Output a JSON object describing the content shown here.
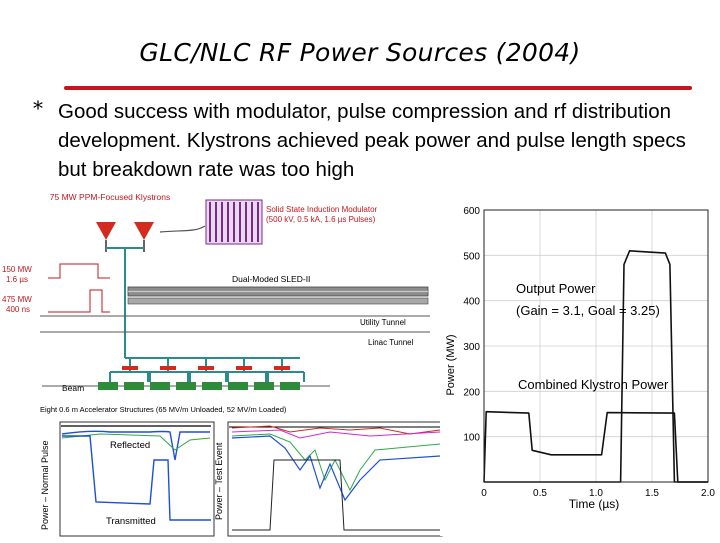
{
  "slide": {
    "title": "GLC/NLC RF Power Sources (2004)",
    "bullet_marker": "*",
    "bullet": "Good success with modulator, pulse compression and rf distribution development.  Klystrons achieved peak power and pulse length specs but breakdown rate was too high",
    "accent_color": "#c4161c"
  },
  "schematic": {
    "klystrons_label": "75 MW PPM-Focused Klystrons",
    "modulator_label_1": "Solid State Induction Modulator",
    "modulator_label_2": "(500 kV, 0.5 kA, 1.6 µs Pulses)",
    "pulse1_power": "150 MW",
    "pulse1_length": "1.6 µs",
    "pulse2_power": "475 MW",
    "pulse2_length": "400 ns",
    "sled_label": "Dual-Moded SLED-II",
    "utility_tunnel": "Utility Tunnel",
    "linac_tunnel": "Linac Tunnel",
    "beam_label": "Beam",
    "structures_label": "Eight 0.6 m Accelerator Structures (65 MV/m Unloaded, 52 MV/m Loaded)"
  },
  "scope1": {
    "ylabel": "Power – Normal Pulse",
    "reflected": "Reflected",
    "transmitted": "Transmitted"
  },
  "scope2": {
    "ylabel": "Power – Test Event"
  },
  "chart_data": {
    "type": "line",
    "xlabel": "Time (µs)",
    "ylabel": "Power (MW)",
    "xlim": [
      0,
      2.0
    ],
    "ylim": [
      0,
      600
    ],
    "x_ticks": [
      "0",
      "0.5",
      "1.0",
      "1.5",
      "2.0"
    ],
    "y_ticks": [
      "600",
      "500",
      "400",
      "300",
      "200",
      "100"
    ],
    "annotations": [
      "Output Power",
      "(Gain = 3.1, Goal = 3.25)",
      "Combined Klystron Power"
    ],
    "series": [
      {
        "x": [
          0,
          0.02,
          0.4,
          0.43,
          0.6,
          1.05,
          1.1,
          1.7,
          1.73,
          2.0
        ],
        "y": [
          0,
          155,
          152,
          70,
          60,
          60,
          153,
          152,
          0,
          0
        ]
      },
      {
        "x": [
          0,
          1.22,
          1.25,
          1.3,
          1.62,
          1.66,
          1.7,
          2.0
        ],
        "y": [
          0,
          0,
          480,
          510,
          505,
          480,
          0,
          0
        ]
      }
    ]
  }
}
